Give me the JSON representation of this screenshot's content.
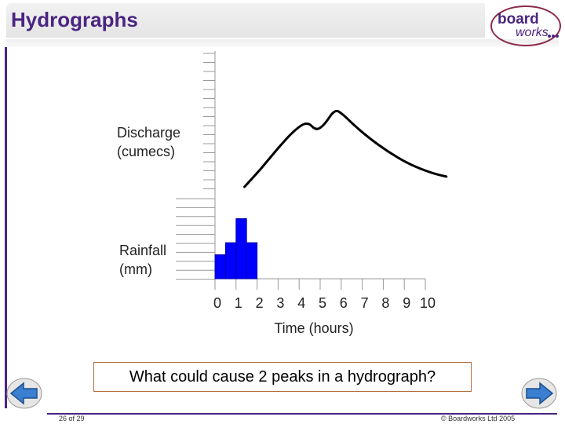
{
  "header": {
    "title": "Hydrographs"
  },
  "logo": {
    "line1": "board",
    "line2": "works",
    "icon": "boardworks-logo-icon"
  },
  "chart_data": [
    {
      "type": "line",
      "title": "",
      "ylabel": "Discharge (cumecs)",
      "xlabel": "Time (hours)",
      "x": [
        0.4,
        1.2,
        2.0,
        2.8,
        3.4,
        3.8,
        4.2,
        4.7,
        5.1,
        5.6,
        6.3,
        7.2,
        8.2,
        9.3,
        10.0
      ],
      "y": [
        1.6,
        3.2,
        5.0,
        6.6,
        7.3,
        6.5,
        7.0,
        8.4,
        7.9,
        7.0,
        5.9,
        4.7,
        3.6,
        2.8,
        2.5
      ],
      "xlim": [
        0,
        10
      ],
      "ylim": [
        0,
        10
      ]
    },
    {
      "type": "bar",
      "title": "",
      "ylabel": "Rainfall (mm)",
      "xlabel": "Time (hours)",
      "x": [
        0,
        0.5,
        1,
        1.5
      ],
      "values": [
        2,
        3,
        5,
        3
      ],
      "bar_width_hours": 0.5,
      "ylim": [
        0,
        6
      ],
      "color": "#0000ff"
    }
  ],
  "axis": {
    "ylabel_discharge_line1": "Discharge",
    "ylabel_discharge_line2": "(cumecs)",
    "ylabel_rain_line1": "Rainfall",
    "ylabel_rain_line2": "(mm)",
    "xlabel": "Time (hours)",
    "x_ticks": [
      "0",
      "1",
      "2",
      "3",
      "4",
      "5",
      "6",
      "7",
      "8",
      "9",
      "10"
    ]
  },
  "question": "What could cause 2 peaks in a hydrograph?",
  "footer": {
    "slide_counter": "26 of 29",
    "copyright": "© Boardworks Ltd 2005"
  },
  "nav": {
    "prev_icon": "arrow-left-icon",
    "next_icon": "arrow-right-icon"
  },
  "colors": {
    "brand": "#4a2582",
    "rain": "#0000ff",
    "nav": "#3a7fd0"
  }
}
